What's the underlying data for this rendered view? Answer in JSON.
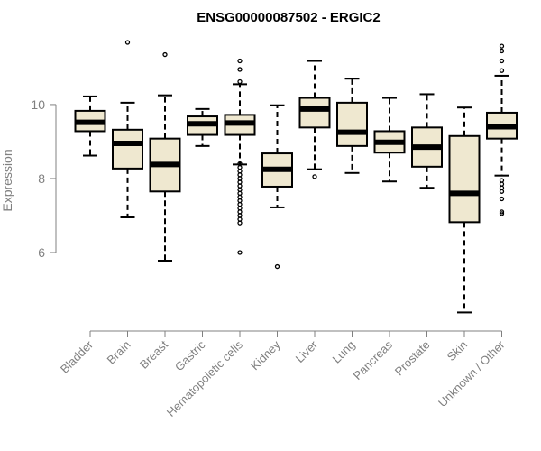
{
  "chart_data": {
    "type": "boxplot",
    "title": "ENSG00000087502 - ERGIC2",
    "xlabel": "",
    "ylabel": "Expression",
    "ylim": [
      4.0,
      11.9
    ],
    "yticks": [
      6,
      8,
      10
    ],
    "ytick_labels": [
      "6",
      "8",
      "10"
    ],
    "categories": [
      "Bladder",
      "Brain",
      "Breast",
      "Gastric",
      "Hematopoietic cells",
      "Kidney",
      "Liver",
      "Lung",
      "Pancreas",
      "Prostate",
      "Skin",
      "Unknown / Other"
    ],
    "box_fill": "#efe8d0",
    "series": [
      {
        "name": "Bladder",
        "whisker_low": 8.62,
        "q1": 9.28,
        "median": 9.52,
        "q3": 9.83,
        "whisker_high": 10.22,
        "outliers": []
      },
      {
        "name": "Brain",
        "whisker_low": 6.95,
        "q1": 8.27,
        "median": 8.95,
        "q3": 9.32,
        "whisker_high": 10.05,
        "outliers": [
          11.68
        ]
      },
      {
        "name": "Breast",
        "whisker_low": 5.78,
        "q1": 7.65,
        "median": 8.38,
        "q3": 9.08,
        "whisker_high": 10.25,
        "outliers": [
          11.35
        ]
      },
      {
        "name": "Gastric",
        "whisker_low": 8.88,
        "q1": 9.18,
        "median": 9.48,
        "q3": 9.68,
        "whisker_high": 9.88,
        "outliers": []
      },
      {
        "name": "Hematopoietic cells",
        "whisker_low": 8.38,
        "q1": 9.18,
        "median": 9.5,
        "q3": 9.72,
        "whisker_high": 10.55,
        "outliers": [
          11.18,
          10.95,
          10.62,
          8.4,
          8.3,
          8.2,
          8.1,
          8.0,
          7.9,
          7.8,
          7.7,
          7.6,
          7.5,
          7.4,
          7.3,
          7.2,
          7.1,
          7.0,
          6.9,
          6.8,
          6.0
        ]
      },
      {
        "name": "Kidney",
        "whisker_low": 7.22,
        "q1": 7.78,
        "median": 8.25,
        "q3": 8.68,
        "whisker_high": 9.98,
        "outliers": [
          5.62
        ]
      },
      {
        "name": "Liver",
        "whisker_low": 8.25,
        "q1": 9.38,
        "median": 9.88,
        "q3": 10.18,
        "whisker_high": 11.18,
        "outliers": [
          8.05
        ]
      },
      {
        "name": "Lung",
        "whisker_low": 8.15,
        "q1": 8.88,
        "median": 9.25,
        "q3": 10.05,
        "whisker_high": 10.7,
        "outliers": []
      },
      {
        "name": "Pancreas",
        "whisker_low": 7.92,
        "q1": 8.7,
        "median": 8.98,
        "q3": 9.28,
        "whisker_high": 10.18,
        "outliers": []
      },
      {
        "name": "Prostate",
        "whisker_low": 7.75,
        "q1": 8.32,
        "median": 8.85,
        "q3": 9.38,
        "whisker_high": 10.28,
        "outliers": []
      },
      {
        "name": "Skin",
        "whisker_low": 4.38,
        "q1": 6.82,
        "median": 7.6,
        "q3": 9.15,
        "whisker_high": 9.92,
        "outliers": []
      },
      {
        "name": "Unknown / Other",
        "whisker_low": 8.08,
        "q1": 9.08,
        "median": 9.4,
        "q3": 9.78,
        "whisker_high": 10.78,
        "outliers": [
          11.58,
          11.45,
          11.18,
          10.92,
          7.95,
          7.85,
          7.75,
          7.65,
          7.45,
          7.1,
          7.05
        ]
      }
    ]
  }
}
